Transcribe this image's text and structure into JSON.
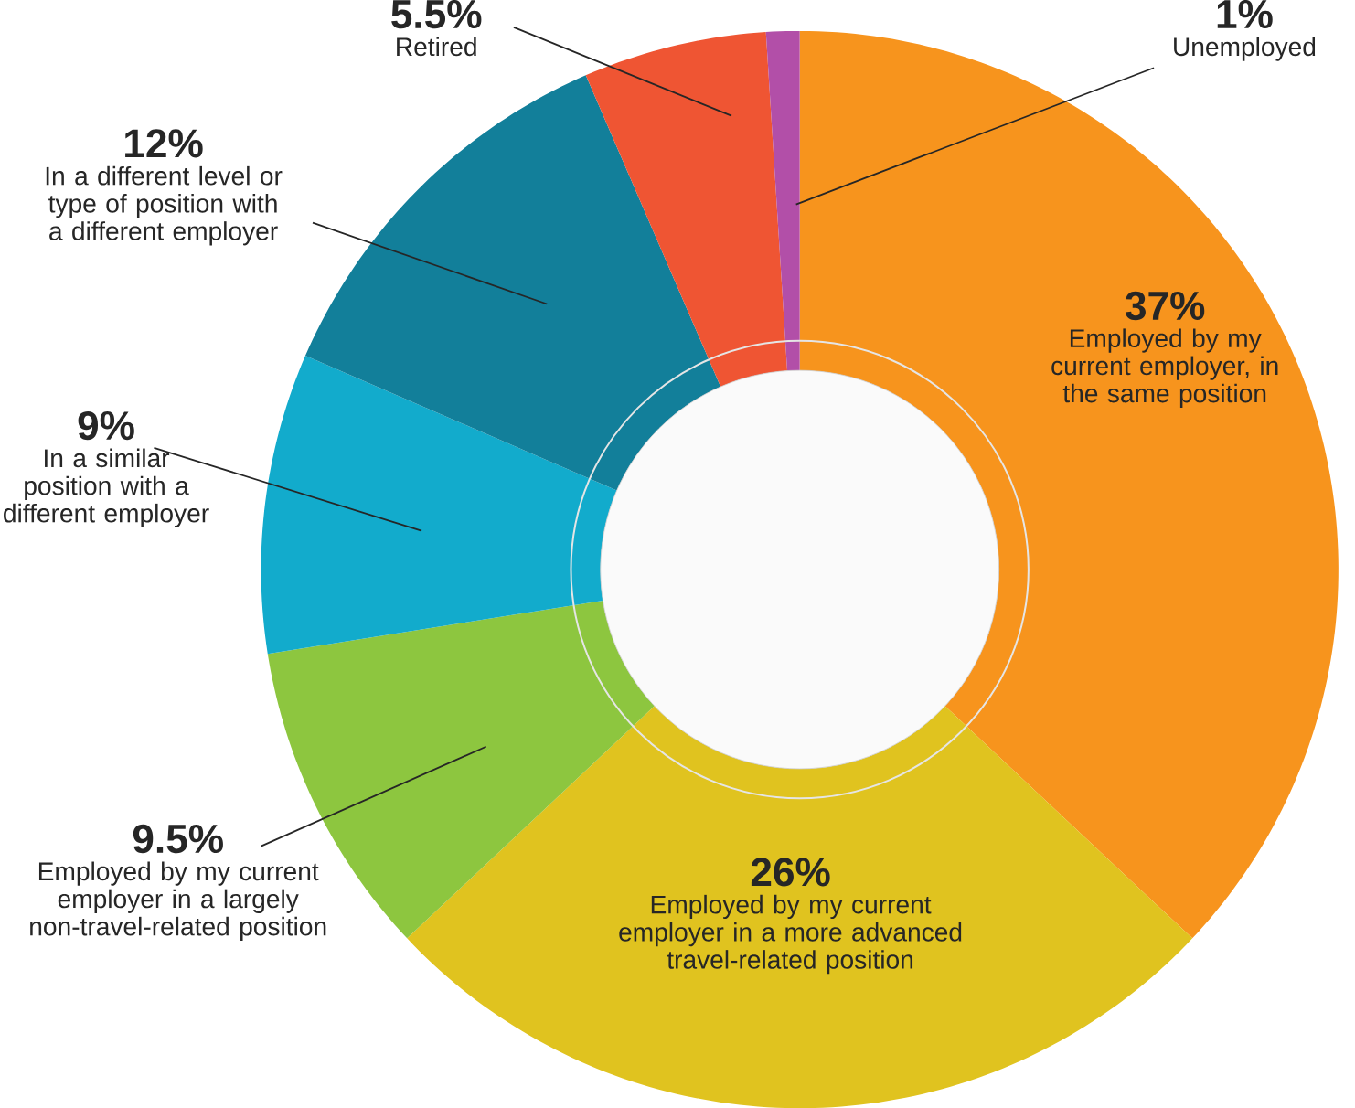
{
  "chart_data": {
    "type": "donut",
    "categories": [
      "Employed by my current employer, in the same position",
      "Employed by my current employer in a more advanced travel-related position",
      "Employed by my current employer in a largely non-travel-related position",
      "In a similar position with a different employer",
      "In a different level or type of position with a different employer",
      "Retired",
      "Unemployed"
    ],
    "values": [
      37,
      26,
      9.5,
      9,
      12,
      5.5,
      1
    ],
    "value_labels": [
      "37%",
      "26%",
      "9.5%",
      "9%",
      "12%",
      "5.5%",
      "1%"
    ],
    "colors": [
      "#f7941d",
      "#e0c31f",
      "#8dc63f",
      "#12abcc",
      "#127f9a",
      "#ef5533",
      "#b24fa8"
    ]
  }
}
